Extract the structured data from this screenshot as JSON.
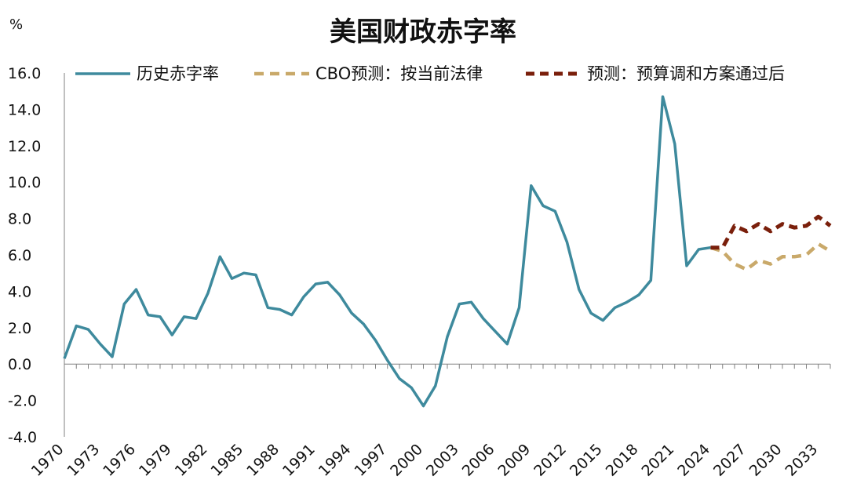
{
  "chart_data": {
    "type": "line",
    "title": "美国财政赤字率",
    "ylabel": "%",
    "xlabel": "",
    "ylim": [
      -4.0,
      16.0
    ],
    "yticks": [
      "16.0",
      "14.0",
      "12.0",
      "10.0",
      "8.0",
      "6.0",
      "4.0",
      "2.0",
      "0.0",
      "-2.0",
      "-4.0"
    ],
    "xticks": [
      "1970",
      "1973",
      "1976",
      "1979",
      "1982",
      "1985",
      "1988",
      "1991",
      "1994",
      "1997",
      "2000",
      "2003",
      "2006",
      "2009",
      "2012",
      "2015",
      "2018",
      "2021",
      "2024",
      "2027",
      "2030",
      "2033"
    ],
    "xlim": [
      1970,
      2034
    ],
    "legend_position": "top",
    "colors": {
      "historical": "#3e8a9d",
      "cbo": "#c9a96a",
      "reconciliation": "#7a1f0b"
    },
    "series": [
      {
        "name": "历史赤字率",
        "style": "solid",
        "x": [
          1970,
          1971,
          1972,
          1973,
          1974,
          1975,
          1976,
          1977,
          1978,
          1979,
          1980,
          1981,
          1982,
          1983,
          1984,
          1985,
          1986,
          1987,
          1988,
          1989,
          1990,
          1991,
          1992,
          1993,
          1994,
          1995,
          1996,
          1997,
          1998,
          1999,
          2000,
          2001,
          2002,
          2003,
          2004,
          2005,
          2006,
          2007,
          2008,
          2009,
          2010,
          2011,
          2012,
          2013,
          2014,
          2015,
          2016,
          2017,
          2018,
          2019,
          2020,
          2021,
          2022,
          2023,
          2024
        ],
        "values": [
          0.3,
          2.1,
          1.9,
          1.1,
          0.4,
          3.3,
          4.1,
          2.7,
          2.6,
          1.6,
          2.6,
          2.5,
          3.9,
          5.9,
          4.7,
          5.0,
          4.9,
          3.1,
          3.0,
          2.7,
          3.7,
          4.4,
          4.5,
          3.8,
          2.8,
          2.2,
          1.3,
          0.2,
          -0.8,
          -1.3,
          -2.3,
          -1.2,
          1.5,
          3.3,
          3.4,
          2.5,
          1.8,
          1.1,
          3.1,
          9.8,
          8.7,
          8.4,
          6.7,
          4.1,
          2.8,
          2.4,
          3.1,
          3.4,
          3.8,
          4.6,
          14.7,
          12.1,
          5.4,
          6.3,
          6.4
        ]
      },
      {
        "name": "CBO预测：按当前法律",
        "style": "dashed",
        "x": [
          2024,
          2025,
          2026,
          2027,
          2028,
          2029,
          2030,
          2031,
          2032,
          2033,
          2034
        ],
        "values": [
          6.4,
          6.2,
          5.5,
          5.2,
          5.7,
          5.5,
          5.9,
          5.9,
          6.0,
          6.6,
          6.2
        ]
      },
      {
        "name": "预测：预算调和方案通过后",
        "style": "dashed",
        "x": [
          2024,
          2025,
          2026,
          2027,
          2028,
          2029,
          2030,
          2031,
          2032,
          2033,
          2034
        ],
        "values": [
          6.4,
          6.4,
          7.6,
          7.3,
          7.7,
          7.3,
          7.7,
          7.5,
          7.6,
          8.1,
          7.6
        ]
      }
    ]
  }
}
